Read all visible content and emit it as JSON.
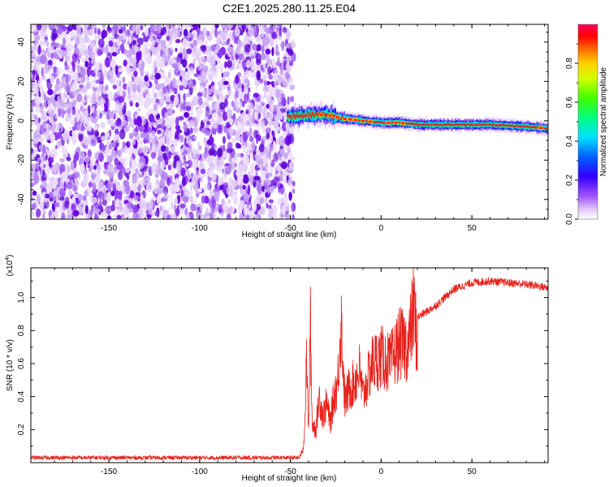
{
  "page": {
    "title": "C2E1.2025.280.11.25.E04"
  },
  "chart_data": [
    {
      "type": "heatmap",
      "name": "spectrogram",
      "xlabel": "Height of straight line (km)",
      "ylabel": "Frequency (Hz)",
      "xlim": [
        -193,
        92
      ],
      "ylim": [
        -50,
        49
      ],
      "xticks": [
        -150,
        -100,
        -50,
        0,
        50
      ],
      "yticks": [
        -40,
        -20,
        0,
        20,
        40
      ],
      "noise_region": [
        -193,
        -50
      ],
      "ridge": {
        "x": [
          -52,
          -40,
          -30,
          -20,
          -10,
          0,
          10,
          20,
          40,
          60,
          80,
          92
        ],
        "y": [
          2,
          3,
          3,
          1,
          0,
          -1,
          -1,
          -2,
          -2,
          -2,
          -3,
          -4
        ]
      },
      "colorbar": {
        "label": "Normalized spectral amplitude",
        "range": [
          0,
          1
        ],
        "ticks": [
          "0.0",
          "0.2",
          "0.4",
          "0.6",
          "0.8"
        ],
        "tick_values": [
          0,
          0.2,
          0.4,
          0.6,
          0.8
        ],
        "colors": [
          "#ffffff",
          "#c896f0",
          "#7a00ff",
          "#0000ff",
          "#00ffff",
          "#00ff00",
          "#ffff00",
          "#ff8000",
          "#ff0000",
          "#ff0080"
        ]
      }
    },
    {
      "type": "line",
      "name": "snr",
      "xlabel": "Height of straight line (km)",
      "ylabel": "SNR (10 * v/v)",
      "y_multiplier": "(x10",
      "y_multiplier_exp": "4",
      "y_multiplier_close": ")",
      "xlim": [
        -193,
        92
      ],
      "ylim": [
        0,
        1.18
      ],
      "xticks": [
        -150,
        -100,
        -50,
        0,
        50
      ],
      "yticks": [
        0.2,
        0.4,
        0.6,
        0.8,
        1.0
      ],
      "ytick_labels": [
        "0.2",
        "0.4",
        "0.6",
        "0.8",
        "1.0"
      ],
      "color": "#e8221c",
      "envelope": {
        "x": [
          -193,
          -60,
          -45,
          -43,
          -42,
          -41,
          -40,
          -39,
          -38,
          -36,
          -34,
          -32,
          -30,
          -28,
          -26,
          -24,
          -22,
          -20,
          -18,
          -15,
          -12,
          -10,
          -5,
          0,
          5,
          10,
          15,
          18,
          20,
          30,
          40,
          50,
          60,
          70,
          80,
          92
        ],
        "y": [
          0.03,
          0.03,
          0.04,
          0.1,
          0.3,
          0.8,
          0.2,
          1.03,
          0.3,
          0.25,
          0.5,
          0.35,
          0.45,
          0.3,
          0.5,
          0.6,
          1.07,
          0.45,
          0.55,
          0.6,
          0.7,
          0.5,
          0.75,
          0.8,
          0.75,
          0.9,
          0.88,
          1.18,
          0.88,
          0.95,
          1.05,
          1.09,
          1.1,
          1.09,
          1.08,
          1.06
        ]
      }
    }
  ]
}
